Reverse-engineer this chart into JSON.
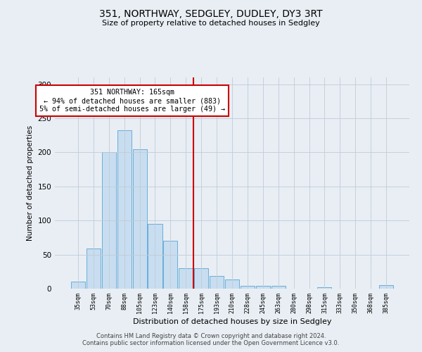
{
  "title1": "351, NORTHWAY, SEDGLEY, DUDLEY, DY3 3RT",
  "title2": "Size of property relative to detached houses in Sedgley",
  "xlabel": "Distribution of detached houses by size in Sedgley",
  "ylabel": "Number of detached properties",
  "categories": [
    "35sqm",
    "53sqm",
    "70sqm",
    "88sqm",
    "105sqm",
    "123sqm",
    "140sqm",
    "158sqm",
    "175sqm",
    "193sqm",
    "210sqm",
    "228sqm",
    "245sqm",
    "263sqm",
    "280sqm",
    "298sqm",
    "315sqm",
    "333sqm",
    "350sqm",
    "368sqm",
    "385sqm"
  ],
  "values": [
    10,
    59,
    200,
    233,
    205,
    95,
    70,
    30,
    30,
    19,
    13,
    4,
    4,
    4,
    0,
    0,
    2,
    0,
    0,
    0,
    5
  ],
  "bar_color": "#c8ddf0",
  "bar_edge_color": "#6aaed6",
  "vline_x": 7.5,
  "vline_color": "#cc0000",
  "annotation_title": "351 NORTHWAY: 165sqm",
  "annotation_line1": "← 94% of detached houses are smaller (883)",
  "annotation_line2": "5% of semi-detached houses are larger (49) →",
  "annotation_box_color": "#cc0000",
  "footer1": "Contains HM Land Registry data © Crown copyright and database right 2024.",
  "footer2": "Contains public sector information licensed under the Open Government Licence v3.0.",
  "bg_color": "#e8eef4",
  "ylim": [
    0,
    310
  ],
  "yticks": [
    0,
    50,
    100,
    150,
    200,
    250,
    300
  ]
}
